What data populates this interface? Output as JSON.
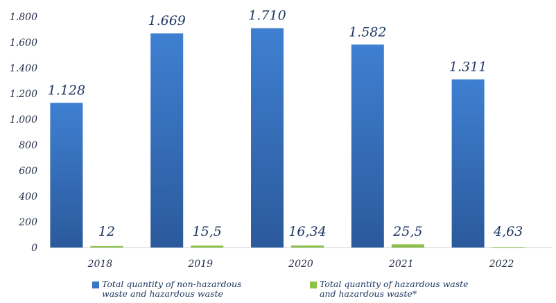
{
  "chart_data": {
    "type": "bar",
    "categories": [
      "2018",
      "2019",
      "2020",
      "2021",
      "2022"
    ],
    "series": [
      {
        "name": "Total quantity of non-hazardous waste and hazardous waste",
        "values": [
          1128,
          1669,
          1710,
          1582,
          1311
        ],
        "labels": [
          "1.128",
          "1.669",
          "1.710",
          "1.582",
          "1.311"
        ],
        "color": "#3a74c4"
      },
      {
        "name": "Total quantity of hazardous waste and hazardous waste*",
        "values": [
          12,
          15.5,
          16.34,
          25.5,
          4.63
        ],
        "labels": [
          "12",
          "15,5",
          "16,34",
          "25,5",
          "4,63"
        ],
        "color": "#8bc34a"
      }
    ],
    "ylim": [
      0,
      1800
    ],
    "yticks": [
      0,
      200,
      400,
      600,
      800,
      1000,
      1200,
      1400,
      1600,
      1800
    ],
    "ytick_labels": [
      "0",
      "200",
      "400",
      "600",
      "800",
      "1.000",
      "1.200",
      "1.400",
      "1.600",
      "1.800"
    ],
    "legend_position": "bottom",
    "grid": false
  }
}
